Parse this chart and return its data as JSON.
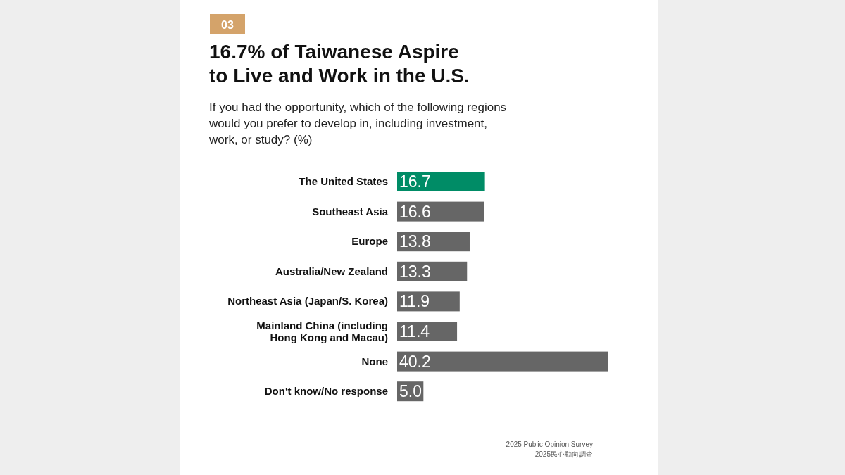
{
  "chart_data": {
    "type": "bar",
    "orientation": "horizontal",
    "title": "16.7% of Taiwanese Aspire to Live and Work in the U.S.",
    "subtitle": "If you had the opportunity, which of the following regions would you prefer to develop in, including investment, work, or study? (%)",
    "categories": [
      "The United States",
      "Southeast Asia",
      "Europe",
      "Australia/New Zealand",
      "Northeast Asia (Japan/S. Korea)",
      "Mainland China (including Hong Kong and Macau)",
      "None",
      "Don't know/No response"
    ],
    "values": [
      16.7,
      16.6,
      13.8,
      13.3,
      11.9,
      11.4,
      40.2,
      5.0
    ],
    "value_labels": [
      "16.7",
      "16.6",
      "13.8",
      "13.3",
      "11.9",
      "11.4",
      "40.2",
      "5.0"
    ],
    "colors": [
      "#008c66",
      "#666666",
      "#666666",
      "#666666",
      "#666666",
      "#666666",
      "#666666",
      "#666666"
    ],
    "annotations": [
      "03",
      "2025 Public Opinion Survey",
      "2025民心動向調查"
    ]
  }
}
